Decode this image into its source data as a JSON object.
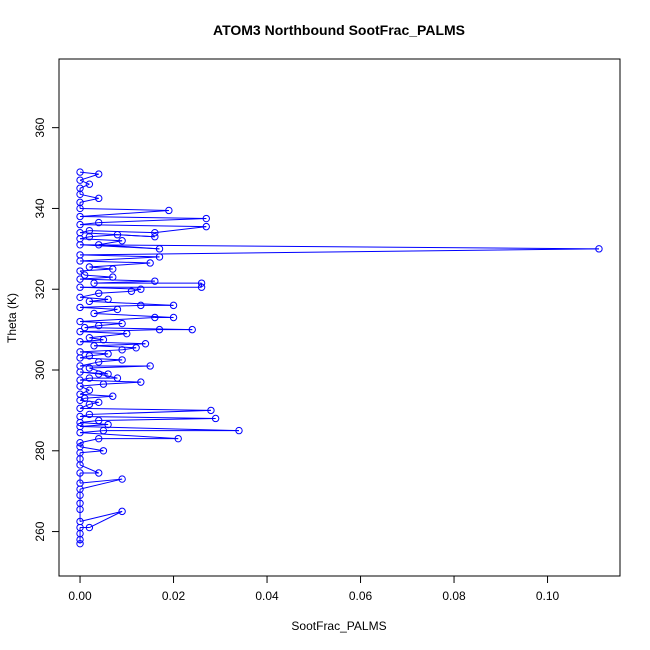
{
  "chart_data": {
    "type": "scatter",
    "title": "ATOM3 Northbound SootFrac_PALMS",
    "xlabel": "SootFrac_PALMS",
    "ylabel": "Theta (K)",
    "xlim": [
      -0.0045,
      0.1155
    ],
    "ylim": [
      249,
      377
    ],
    "x_ticks": [
      0.0,
      0.02,
      0.04,
      0.06,
      0.08,
      0.1
    ],
    "x_tick_labels": [
      "0.00",
      "0.02",
      "0.04",
      "0.06",
      "0.08",
      "0.10"
    ],
    "y_ticks": [
      260,
      280,
      300,
      320,
      340,
      360
    ],
    "y_tick_labels": [
      "260",
      "280",
      "300",
      "320",
      "340",
      "360"
    ],
    "grid": false,
    "marker": "open-circle",
    "connected": true,
    "series": [
      {
        "color": "#0000ff",
        "points": [
          [
            0.0,
            257
          ],
          [
            0.0,
            258
          ],
          [
            0.0,
            259.5
          ],
          [
            0.0,
            261
          ],
          [
            0.002,
            261
          ],
          [
            0.009,
            265
          ],
          [
            0.0,
            262.5
          ],
          [
            0.0,
            265.5
          ],
          [
            0.0,
            267
          ],
          [
            0.0,
            269
          ],
          [
            0.0,
            270.5
          ],
          [
            0.009,
            273
          ],
          [
            0.0,
            272
          ],
          [
            0.0,
            274.5
          ],
          [
            0.004,
            274.5
          ],
          [
            0.0,
            276.5
          ],
          [
            0.0,
            278
          ],
          [
            0.0,
            279.5
          ],
          [
            0.005,
            280
          ],
          [
            0.0,
            281
          ],
          [
            0.0,
            282
          ],
          [
            0.004,
            283
          ],
          [
            0.021,
            283
          ],
          [
            0.0,
            284.5
          ],
          [
            0.005,
            285
          ],
          [
            0.034,
            285
          ],
          [
            0.0,
            286
          ],
          [
            0.006,
            286.5
          ],
          [
            0.0,
            287
          ],
          [
            0.004,
            287.5
          ],
          [
            0.029,
            288
          ],
          [
            0.0,
            288.5
          ],
          [
            0.002,
            289
          ],
          [
            0.028,
            290
          ],
          [
            0.0,
            290.5
          ],
          [
            0.002,
            291.5
          ],
          [
            0.004,
            292
          ],
          [
            0.0,
            292.5
          ],
          [
            0.001,
            293
          ],
          [
            0.007,
            293.5
          ],
          [
            0.0,
            294
          ],
          [
            0.002,
            295
          ],
          [
            0.0,
            296
          ],
          [
            0.005,
            296.5
          ],
          [
            0.013,
            297
          ],
          [
            0.0,
            297.5
          ],
          [
            0.002,
            298
          ],
          [
            0.008,
            298
          ],
          [
            0.004,
            299
          ],
          [
            0.0,
            299.5
          ],
          [
            0.006,
            299
          ],
          [
            0.002,
            300.5
          ],
          [
            0.015,
            301
          ],
          [
            0.0,
            301
          ],
          [
            0.004,
            302
          ],
          [
            0.009,
            302.5
          ],
          [
            0.0,
            303
          ],
          [
            0.002,
            303.5
          ],
          [
            0.006,
            304
          ],
          [
            0.0,
            304.5
          ],
          [
            0.009,
            305
          ],
          [
            0.012,
            305.5
          ],
          [
            0.003,
            306
          ],
          [
            0.014,
            306.5
          ],
          [
            0.0,
            307
          ],
          [
            0.005,
            307.5
          ],
          [
            0.002,
            308
          ],
          [
            0.01,
            309
          ],
          [
            0.0,
            309.5
          ],
          [
            0.017,
            310
          ],
          [
            0.024,
            310
          ],
          [
            0.001,
            310.5
          ],
          [
            0.004,
            311
          ],
          [
            0.009,
            311.5
          ],
          [
            0.0,
            312
          ],
          [
            0.016,
            313
          ],
          [
            0.02,
            313
          ],
          [
            0.003,
            314
          ],
          [
            0.008,
            315
          ],
          [
            0.0,
            315.5
          ],
          [
            0.013,
            316
          ],
          [
            0.02,
            316
          ],
          [
            0.002,
            317
          ],
          [
            0.006,
            317.5
          ],
          [
            0.0,
            318
          ],
          [
            0.004,
            319
          ],
          [
            0.011,
            319.5
          ],
          [
            0.013,
            320
          ],
          [
            0.0,
            320.5
          ],
          [
            0.026,
            320.5
          ],
          [
            0.026,
            321.5
          ],
          [
            0.003,
            321.5
          ],
          [
            0.016,
            322
          ],
          [
            0.0,
            322.5
          ],
          [
            0.007,
            323
          ],
          [
            0.001,
            323.5
          ],
          [
            0.0,
            324.5
          ],
          [
            0.007,
            325
          ],
          [
            0.002,
            325.5
          ],
          [
            0.015,
            326.5
          ],
          [
            0.0,
            327
          ],
          [
            0.017,
            328
          ],
          [
            0.0,
            328.5
          ],
          [
            0.111,
            330
          ],
          [
            0.0,
            331
          ],
          [
            0.017,
            330
          ],
          [
            0.004,
            331
          ],
          [
            0.009,
            332
          ],
          [
            0.0,
            332.5
          ],
          [
            0.002,
            333
          ],
          [
            0.008,
            333.5
          ],
          [
            0.016,
            333
          ],
          [
            0.0,
            334
          ],
          [
            0.002,
            334.5
          ],
          [
            0.016,
            334
          ],
          [
            0.027,
            335.5
          ],
          [
            0.0,
            336
          ],
          [
            0.004,
            336.5
          ],
          [
            0.027,
            337.5
          ],
          [
            0.0,
            338
          ],
          [
            0.019,
            339.5
          ],
          [
            0.0,
            340
          ],
          [
            0.0,
            341.5
          ],
          [
            0.004,
            342.5
          ],
          [
            0.0,
            343.5
          ],
          [
            0.0,
            345
          ],
          [
            0.002,
            346
          ],
          [
            0.0,
            347
          ],
          [
            0.004,
            348.5
          ],
          [
            0.0,
            349
          ]
        ]
      }
    ]
  }
}
